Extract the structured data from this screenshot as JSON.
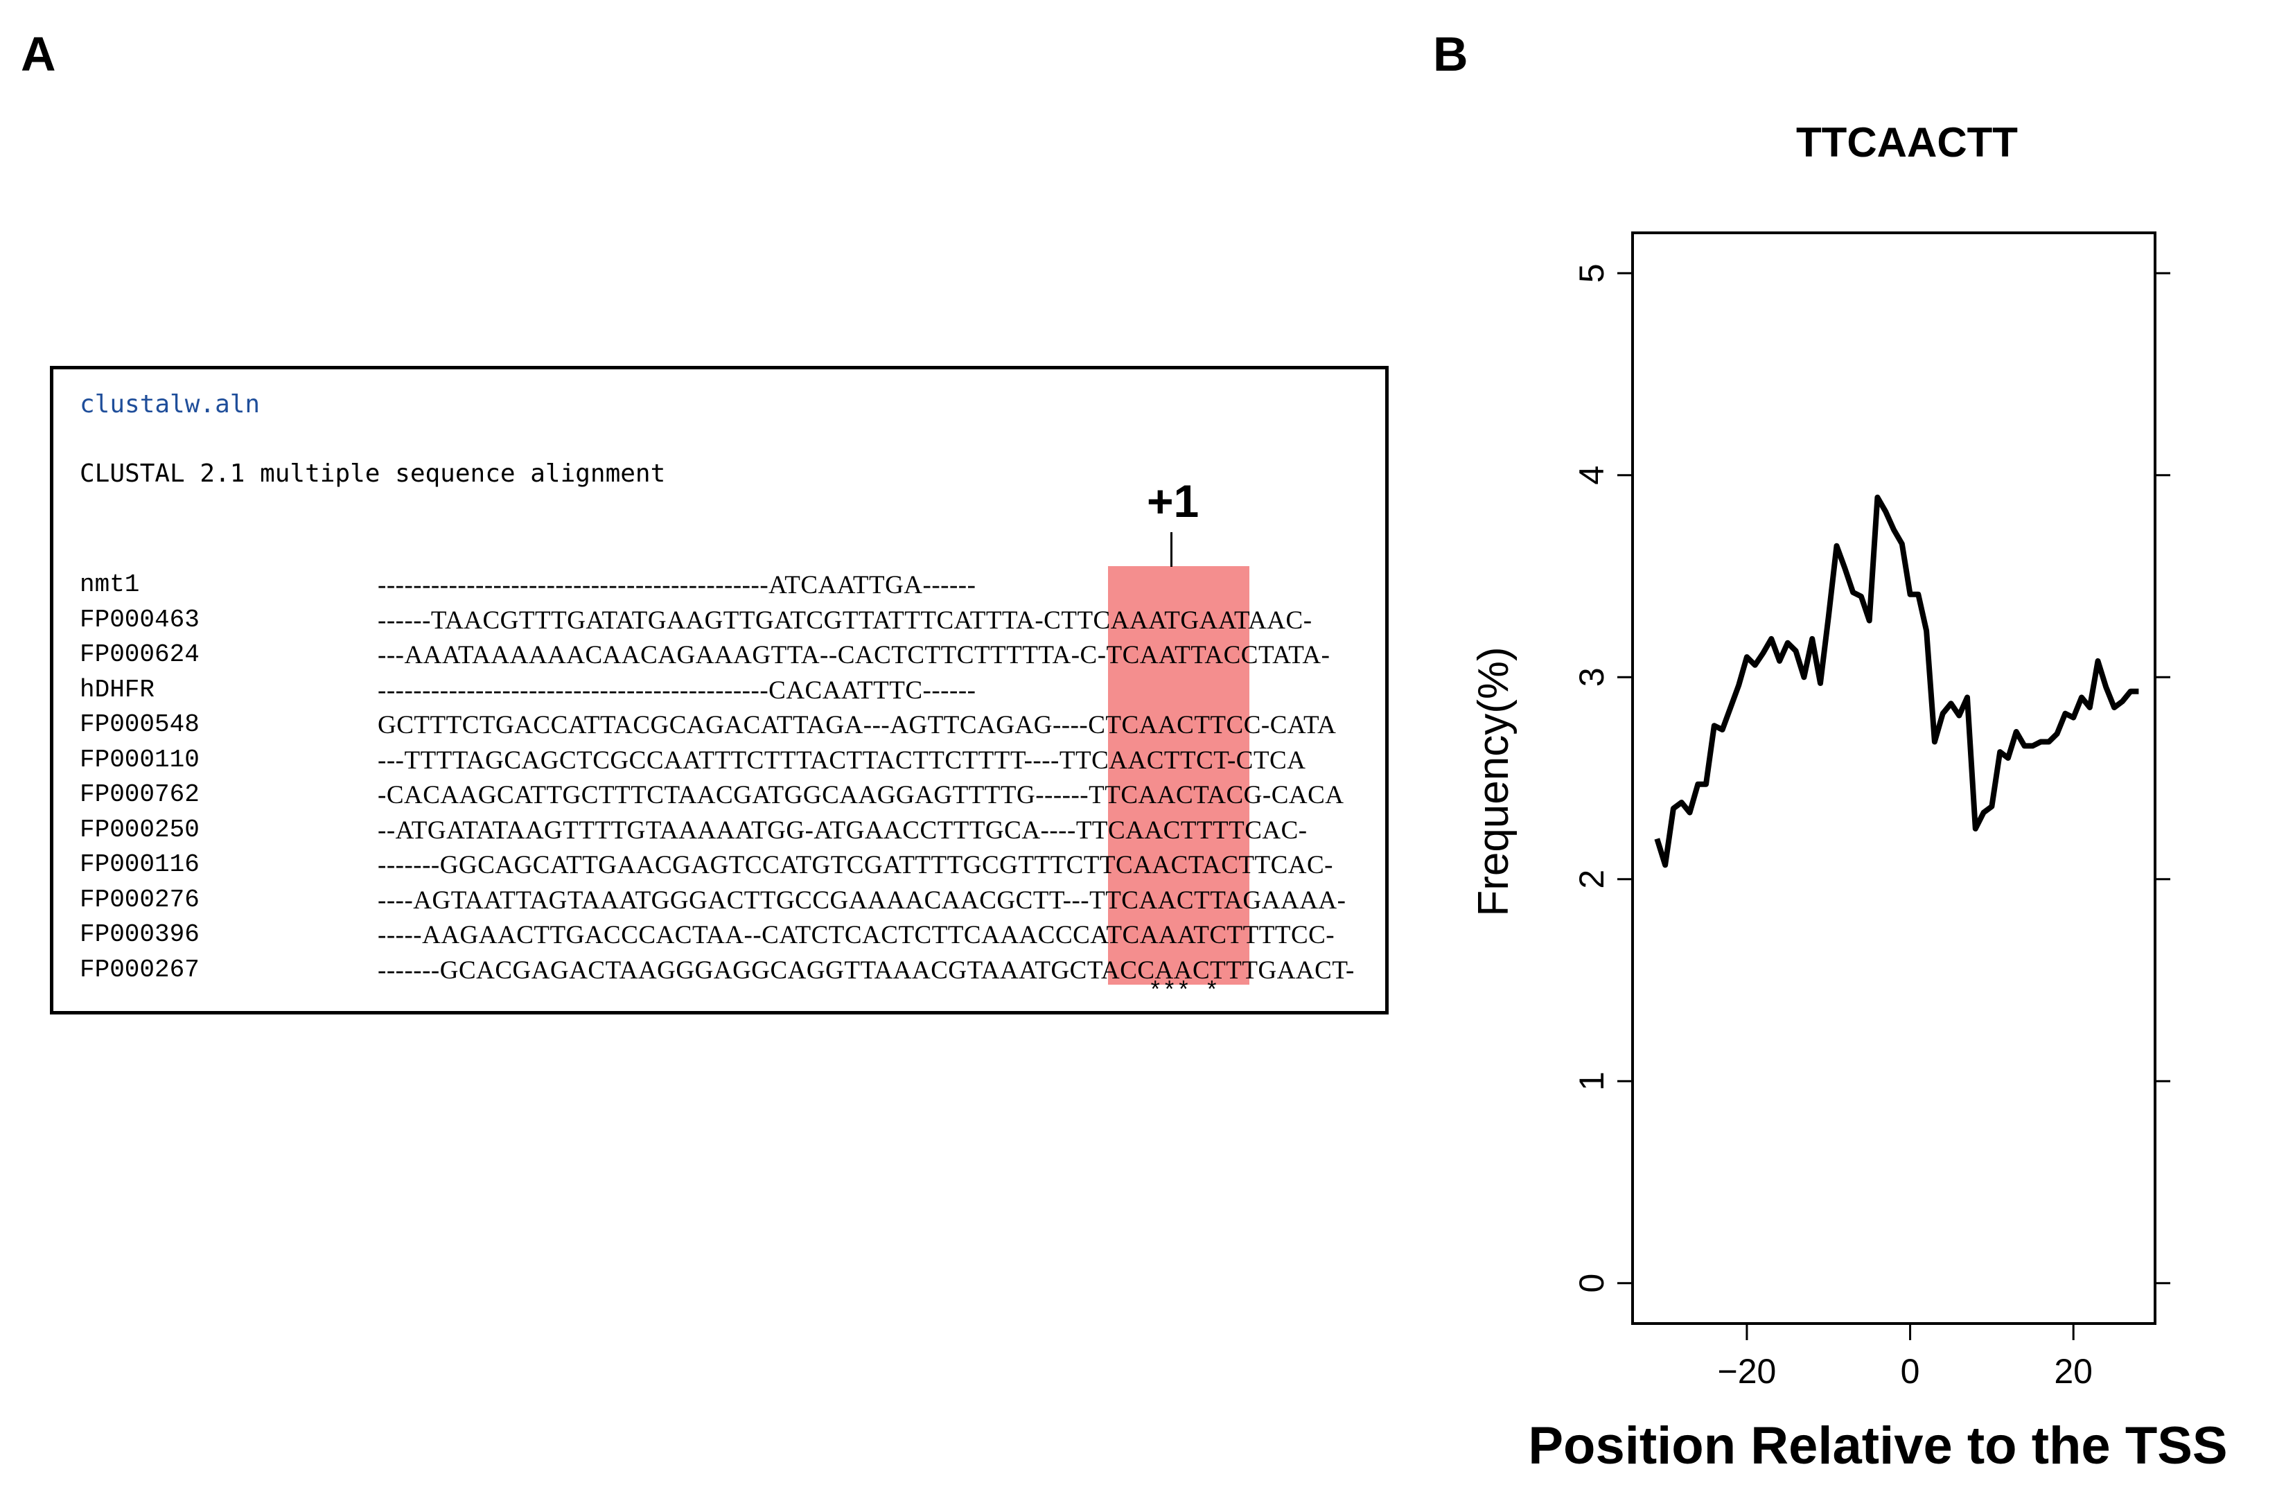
{
  "panel_a": {
    "label": "A",
    "file_name": "clustalw.aln",
    "header": "CLUSTAL 2.1 multiple sequence alignment",
    "tss_marker": "+1",
    "highlight_color": "#f27a7a",
    "consensus": "*** *",
    "sequences": [
      {
        "name": "nmt1",
        "seq": "--------------------------------------------ATCAATTGA------"
      },
      {
        "name": "FP000463",
        "seq": "------TAACGTTTGATATGAAGTTGATCGTTATTTCATTTA-CTTCAAATGAATAAC-"
      },
      {
        "name": "FP000624",
        "seq": "---AAATAAAAAACAACAGAAAGTTA--CACTCTTCTTTTTA-C-TCAATTACCTATA-"
      },
      {
        "name": "hDHFR",
        "seq": "--------------------------------------------CACAATTTC------"
      },
      {
        "name": "FP000548",
        "seq": "GCTTTCTGACCATTACGCAGACATTAGA---AGTTCAGAG----CTCAACTTCC-CATA"
      },
      {
        "name": "FP000110",
        "seq": "---TTTTAGCAGCTCGCCAATTTCTTTACTTACTTCTTTT----TTCAACTTCT-CTCA"
      },
      {
        "name": "FP000762",
        "seq": "-CACAAGCATTGCTTTCTAACGATGGCAAGGAGTTTTG------TTCAACTACG-CACA"
      },
      {
        "name": "FP000250",
        "seq": "--ATGATATAAGTTTTGTAAAAATGG-ATGAACCTTTGCA----TTCAACTTTTCAC-"
      },
      {
        "name": "FP000116",
        "seq": "-------GGCAGCATTGAACGAGTCCATGTCGATTTTGCGTTTCTTCAACTACTTCAC-"
      },
      {
        "name": "FP000276",
        "seq": "----AGTAATTAGTAAATGGGACTTGCCGAAAACAACGCTT---TTCAACTTAGAAAA-"
      },
      {
        "name": "FP000396",
        "seq": "-----AAGAACTTGACCCACTAA--CATCTCACTCTTCAAACCCATCAAATCTTTTCC-"
      },
      {
        "name": "FP000267",
        "seq": "-------GCACGAGACTAAGGGAGGCAGGTTAAACGTAAATGCTACCAACTTTGAACT-"
      }
    ]
  },
  "panel_b": {
    "label": "B"
  },
  "chart_data": {
    "type": "line",
    "title": "TTCAACTT",
    "xlabel": "Position Relative to the TSS",
    "ylabel": "Frequency(%)",
    "xlim": [
      -34,
      30
    ],
    "ylim": [
      -0.2,
      5.2
    ],
    "xticks": [
      -20,
      0,
      20
    ],
    "xtick_labels": [
      "−20",
      "0",
      "20"
    ],
    "yticks": [
      0,
      1,
      2,
      3,
      4,
      5
    ],
    "ytick_labels": [
      "0",
      "1",
      "2",
      "3",
      "4",
      "5"
    ],
    "line_color": "#000000",
    "series": [
      {
        "name": "TTCAACTT",
        "x": [
          -31,
          -30,
          -29,
          -28,
          -27,
          -26,
          -25,
          -24,
          -23,
          -22,
          -21,
          -20,
          -19,
          -18,
          -17,
          -16,
          -15,
          -14,
          -13,
          -12,
          -11,
          -10,
          -9,
          -8,
          -7,
          -6,
          -5,
          -4,
          -3,
          -2,
          -1,
          0,
          1,
          2,
          3,
          4,
          5,
          6,
          7,
          8,
          9,
          10,
          11,
          12,
          13,
          14,
          15,
          16,
          17,
          18,
          19,
          20,
          21,
          22,
          23,
          24,
          25,
          26,
          27,
          28
        ],
        "y": [
          2.2,
          2.07,
          2.35,
          2.38,
          2.33,
          2.47,
          2.47,
          2.76,
          2.74,
          2.85,
          2.96,
          3.1,
          3.06,
          3.12,
          3.19,
          3.08,
          3.17,
          3.13,
          3.0,
          3.19,
          2.97,
          3.3,
          3.65,
          3.54,
          3.42,
          3.4,
          3.28,
          3.89,
          3.82,
          3.73,
          3.66,
          3.41,
          3.41,
          3.23,
          2.68,
          2.82,
          2.87,
          2.81,
          2.9,
          2.25,
          2.33,
          2.36,
          2.63,
          2.6,
          2.73,
          2.66,
          2.66,
          2.68,
          2.68,
          2.72,
          2.82,
          2.8,
          2.9,
          2.85,
          3.08,
          2.95,
          2.85,
          2.88,
          2.93,
          2.93
        ]
      }
    ]
  }
}
